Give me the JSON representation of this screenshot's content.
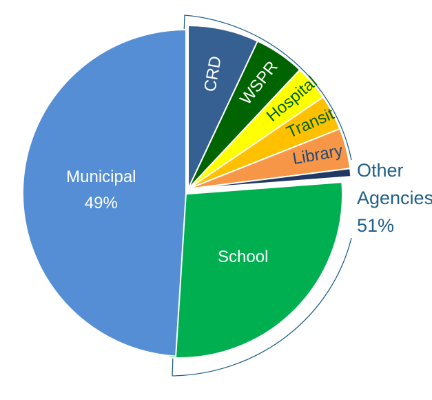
{
  "chart_data": {
    "type": "pie",
    "slices": [
      {
        "label": "CRD",
        "value": 7.0,
        "color": "#376092",
        "text_color": "#ffffff"
      },
      {
        "label": "WSPR",
        "value": 5.0,
        "color": "#006400",
        "text_color": "#ffffff"
      },
      {
        "label": "Hospital",
        "value": 3.5,
        "color": "#ffff00",
        "text_color": "#006400"
      },
      {
        "label": "Transit",
        "value": 3.5,
        "color": "#ffc000",
        "text_color": "#006400"
      },
      {
        "label": "Library",
        "value": 4.0,
        "color": "#f79646",
        "text_color": "#1f497d"
      },
      {
        "label": "",
        "value": 0.8,
        "color": "#1f3864",
        "text_color": "#ffffff"
      },
      {
        "label": "School",
        "value": 27.2,
        "color": "#00b050",
        "text_color": "#ffffff"
      },
      {
        "label": "Municipal",
        "value": 49.0,
        "color": "#558ed5",
        "text_color": "#ffffff",
        "value_label": "49%"
      }
    ],
    "group": {
      "lines": [
        "Other",
        "Agencies",
        "51%"
      ],
      "color": "#1f5f8b"
    }
  }
}
